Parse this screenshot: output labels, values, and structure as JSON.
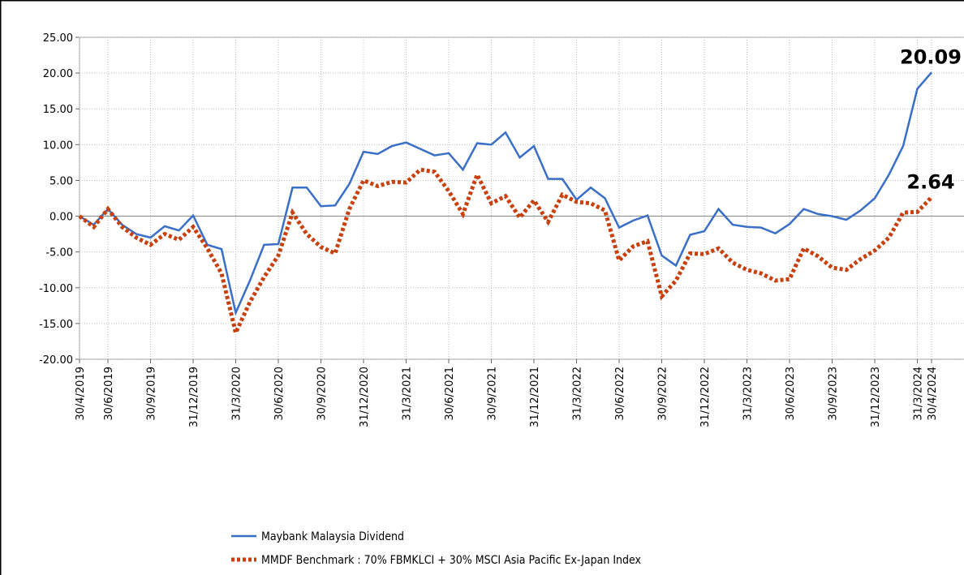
{
  "chart_data": {
    "type": "line",
    "categories": [
      "30/4/2019",
      null,
      "30/6/2019",
      null,
      null,
      "30/9/2019",
      null,
      null,
      "31/12/2019",
      null,
      null,
      "31/3/2020",
      null,
      null,
      "30/6/2020",
      null,
      null,
      "30/9/2020",
      null,
      null,
      "31/12/2020",
      null,
      null,
      "31/3/2021",
      null,
      null,
      "30/6/2021",
      null,
      null,
      "30/9/2021",
      null,
      null,
      "31/12/2021",
      null,
      null,
      "31/3/2022",
      null,
      null,
      "30/6/2022",
      null,
      null,
      "30/9/2022",
      null,
      null,
      "31/12/2022",
      null,
      null,
      "31/3/2023",
      null,
      null,
      "30/6/2023",
      null,
      null,
      "30/9/2023",
      null,
      null,
      "31/12/2023",
      null,
      null,
      "31/3/2024",
      "30/4/2024"
    ],
    "series": [
      {
        "name": "Maybank Malaysia Dividend",
        "color": "#3a6fc8",
        "dash": false,
        "values": [
          0,
          -1.2,
          1.0,
          -1.2,
          -2.5,
          -3.0,
          -1.4,
          -2.0,
          0.1,
          -4.0,
          -4.6,
          -13.5,
          -9.0,
          -4.0,
          -3.9,
          4.0,
          4.0,
          1.4,
          1.5,
          4.5,
          9.0,
          8.7,
          9.8,
          10.3,
          9.4,
          8.5,
          8.8,
          6.5,
          10.2,
          10.0,
          11.7,
          8.2,
          9.8,
          5.2,
          5.2,
          2.3,
          4.0,
          2.5,
          -1.6,
          -0.6,
          0.1,
          -5.5,
          -6.9,
          -2.6,
          -2.1,
          1.0,
          -1.2,
          -1.5,
          -1.6,
          -2.4,
          -1.1,
          1.0,
          0.3,
          0.0,
          -0.5,
          0.8,
          2.5,
          5.8,
          9.8,
          17.8,
          20.09
        ],
        "value_labels": [
          null,
          null,
          null,
          null,
          null,
          null,
          null,
          null,
          null,
          null,
          null,
          null,
          null,
          null,
          null,
          null,
          null,
          null,
          null,
          null,
          null,
          null,
          null,
          null,
          null,
          null,
          null,
          null,
          null,
          null,
          null,
          null,
          null,
          null,
          null,
          null,
          null,
          null,
          null,
          null,
          null,
          null,
          null,
          null,
          null,
          null,
          null,
          null,
          null,
          null,
          null,
          null,
          null,
          null,
          null,
          null,
          null,
          null,
          null,
          null,
          "20.09"
        ]
      },
      {
        "name": "MMDF Benchmark : 70% FBMKLCI + 30% MSCI Asia Pacific Ex-Japan Index",
        "color": "#c8400c",
        "dash": true,
        "values": [
          0,
          -1.5,
          1.0,
          -1.5,
          -3.0,
          -4.0,
          -2.5,
          -3.3,
          -1.5,
          -4.5,
          -8.0,
          -16.3,
          -12.0,
          -8.5,
          -5.5,
          0.5,
          -2.5,
          -4.3,
          -5.2,
          1.0,
          5.0,
          4.2,
          4.8,
          4.7,
          6.5,
          6.2,
          3.5,
          0.3,
          5.8,
          1.8,
          2.8,
          -0.2,
          2.2,
          -0.8,
          3.0,
          2.0,
          1.8,
          0.8,
          -6.2,
          -4.2,
          -3.5,
          -11.2,
          -9.0,
          -5.2,
          -5.3,
          -4.5,
          -6.5,
          -7.5,
          -8.0,
          -9.0,
          -8.8,
          -4.5,
          -5.6,
          -7.2,
          -7.5,
          -6.0,
          -4.8,
          -3.0,
          0.5,
          0.6,
          2.64
        ],
        "value_labels": [
          null,
          null,
          null,
          null,
          null,
          null,
          null,
          null,
          null,
          null,
          null,
          null,
          null,
          null,
          null,
          null,
          null,
          null,
          null,
          null,
          null,
          null,
          null,
          null,
          null,
          null,
          null,
          null,
          null,
          null,
          null,
          null,
          null,
          null,
          null,
          null,
          null,
          null,
          null,
          null,
          null,
          null,
          null,
          null,
          null,
          null,
          null,
          null,
          null,
          null,
          null,
          null,
          null,
          null,
          null,
          null,
          null,
          null,
          null,
          null,
          "2.64"
        ]
      }
    ],
    "ylim": [
      -20,
      25
    ],
    "yticks": [
      {
        "value": -20,
        "label": "-20.00"
      },
      {
        "value": -15,
        "label": "-15.00"
      },
      {
        "value": -10,
        "label": "-10.00"
      },
      {
        "value": -5,
        "label": "-5.00"
      },
      {
        "value": 0,
        "label": "0.00"
      },
      {
        "value": 5,
        "label": "5.00"
      },
      {
        "value": 10,
        "label": "10.00"
      },
      {
        "value": 15,
        "label": "15.00"
      },
      {
        "value": 20,
        "label": "20.00"
      },
      {
        "value": 25,
        "label": "25.00"
      }
    ],
    "grid": true
  }
}
